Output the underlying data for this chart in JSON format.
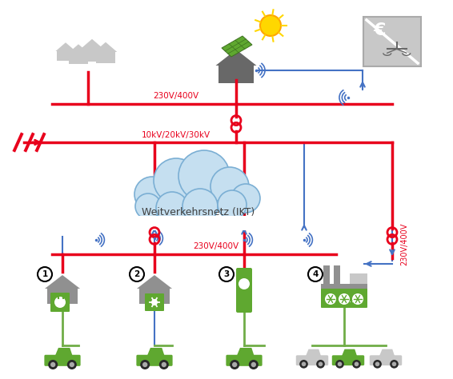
{
  "bg_color": "#ffffff",
  "red_color": "#e8001c",
  "blue_color": "#4472c4",
  "green_color": "#70ad47",
  "light_gray": "#c8c8c8",
  "mid_gray": "#909090",
  "dark_gray": "#686868",
  "cloud_color": "#c5dff0",
  "cloud_edge": "#7bafd4",
  "cloud_text": "Weitverkehrsnetz (IKT)",
  "label_230": "230V/400V",
  "label_10kv": "10kV/20kV/30kV"
}
